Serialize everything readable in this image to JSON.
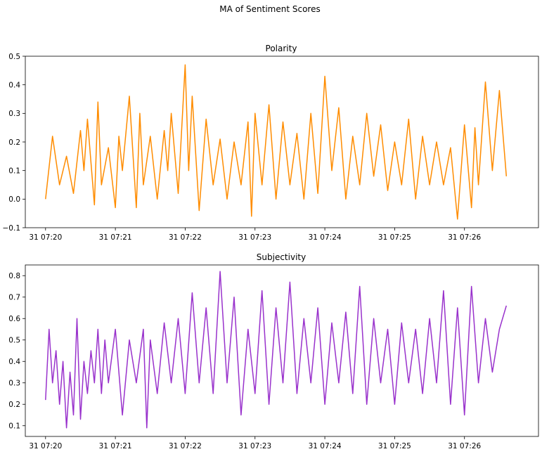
{
  "figure": {
    "suptitle": "MA of Sentiment Scores"
  },
  "chart_data": [
    {
      "type": "line",
      "title": "Polarity",
      "xlabel": "",
      "ylabel": "",
      "ylim": [
        -0.1,
        0.5
      ],
      "yticks": [
        "−0.1",
        "0.0",
        "0.1",
        "0.2",
        "0.3",
        "0.4",
        "0.5"
      ],
      "ytick_values": [
        -0.1,
        0.0,
        0.1,
        0.2,
        0.3,
        0.4,
        0.5
      ],
      "xlim_minutes": [
        -0.29,
        7.06
      ],
      "xticks": [
        "31 07:20",
        "31 07:21",
        "31 07:22",
        "31 07:23",
        "31 07:24",
        "31 07:25",
        "31 07:26"
      ],
      "xtick_minutes": [
        0,
        1,
        2,
        3,
        4,
        5,
        6
      ],
      "series": [
        {
          "color": "#ff8c00",
          "x_minutes": [
            0.0,
            0.1,
            0.2,
            0.3,
            0.4,
            0.5,
            0.55,
            0.6,
            0.7,
            0.75,
            0.8,
            0.9,
            1.0,
            1.05,
            1.1,
            1.2,
            1.3,
            1.35,
            1.4,
            1.5,
            1.6,
            1.7,
            1.75,
            1.8,
            1.9,
            2.0,
            2.05,
            2.1,
            2.2,
            2.3,
            2.4,
            2.5,
            2.6,
            2.7,
            2.8,
            2.9,
            2.95,
            3.0,
            3.1,
            3.2,
            3.3,
            3.4,
            3.5,
            3.6,
            3.7,
            3.8,
            3.9,
            4.0,
            4.1,
            4.2,
            4.3,
            4.4,
            4.5,
            4.6,
            4.7,
            4.8,
            4.9,
            5.0,
            5.1,
            5.2,
            5.3,
            5.4,
            5.5,
            5.6,
            5.7,
            5.8,
            5.9,
            6.0,
            6.1,
            6.15,
            6.2,
            6.3,
            6.4,
            6.5,
            6.6
          ],
          "values": [
            0.0,
            0.22,
            0.05,
            0.15,
            0.02,
            0.24,
            0.1,
            0.28,
            -0.02,
            0.34,
            0.05,
            0.18,
            -0.03,
            0.22,
            0.1,
            0.36,
            -0.03,
            0.3,
            0.05,
            0.22,
            0.0,
            0.24,
            0.1,
            0.3,
            0.02,
            0.47,
            0.1,
            0.36,
            -0.04,
            0.28,
            0.05,
            0.21,
            0.0,
            0.2,
            0.05,
            0.27,
            -0.06,
            0.3,
            0.05,
            0.33,
            0.0,
            0.27,
            0.05,
            0.23,
            0.0,
            0.3,
            0.02,
            0.43,
            0.1,
            0.32,
            0.0,
            0.22,
            0.05,
            0.3,
            0.08,
            0.26,
            0.03,
            0.2,
            0.05,
            0.28,
            0.0,
            0.22,
            0.05,
            0.2,
            0.05,
            0.18,
            -0.07,
            0.26,
            -0.03,
            0.25,
            0.05,
            0.41,
            0.1,
            0.38,
            0.08
          ]
        }
      ]
    },
    {
      "type": "line",
      "title": "Subjectivity",
      "xlabel": "",
      "ylabel": "",
      "ylim": [
        0.05,
        0.85
      ],
      "yticks": [
        "0.1",
        "0.2",
        "0.3",
        "0.4",
        "0.5",
        "0.6",
        "0.7",
        "0.8"
      ],
      "ytick_values": [
        0.1,
        0.2,
        0.3,
        0.4,
        0.5,
        0.6,
        0.7,
        0.8
      ],
      "xlim_minutes": [
        -0.29,
        7.06
      ],
      "xticks": [
        "31 07:20",
        "31 07:21",
        "31 07:22",
        "31 07:23",
        "31 07:24",
        "31 07:25",
        "31 07:26"
      ],
      "xtick_minutes": [
        0,
        1,
        2,
        3,
        4,
        5,
        6
      ],
      "series": [
        {
          "color": "#9932cc",
          "x_minutes": [
            0.0,
            0.05,
            0.1,
            0.15,
            0.2,
            0.25,
            0.3,
            0.35,
            0.4,
            0.45,
            0.5,
            0.55,
            0.6,
            0.65,
            0.7,
            0.75,
            0.8,
            0.85,
            0.9,
            1.0,
            1.1,
            1.2,
            1.3,
            1.4,
            1.45,
            1.5,
            1.6,
            1.7,
            1.8,
            1.9,
            2.0,
            2.1,
            2.2,
            2.3,
            2.4,
            2.5,
            2.6,
            2.7,
            2.8,
            2.9,
            3.0,
            3.1,
            3.2,
            3.3,
            3.4,
            3.5,
            3.6,
            3.7,
            3.8,
            3.9,
            4.0,
            4.1,
            4.2,
            4.3,
            4.4,
            4.5,
            4.6,
            4.7,
            4.8,
            4.9,
            5.0,
            5.1,
            5.2,
            5.3,
            5.4,
            5.5,
            5.6,
            5.7,
            5.8,
            5.9,
            6.0,
            6.1,
            6.2,
            6.3,
            6.4,
            6.5,
            6.6
          ],
          "values": [
            0.22,
            0.55,
            0.3,
            0.45,
            0.2,
            0.4,
            0.09,
            0.35,
            0.15,
            0.6,
            0.13,
            0.4,
            0.25,
            0.45,
            0.3,
            0.55,
            0.25,
            0.5,
            0.3,
            0.55,
            0.15,
            0.5,
            0.3,
            0.55,
            0.09,
            0.5,
            0.25,
            0.58,
            0.3,
            0.6,
            0.25,
            0.72,
            0.3,
            0.65,
            0.25,
            0.82,
            0.3,
            0.7,
            0.15,
            0.55,
            0.25,
            0.73,
            0.2,
            0.65,
            0.3,
            0.77,
            0.25,
            0.6,
            0.3,
            0.65,
            0.2,
            0.58,
            0.3,
            0.63,
            0.25,
            0.75,
            0.2,
            0.6,
            0.3,
            0.55,
            0.2,
            0.58,
            0.3,
            0.55,
            0.25,
            0.6,
            0.3,
            0.73,
            0.2,
            0.65,
            0.15,
            0.75,
            0.3,
            0.6,
            0.35,
            0.55,
            0.66
          ]
        }
      ]
    }
  ]
}
